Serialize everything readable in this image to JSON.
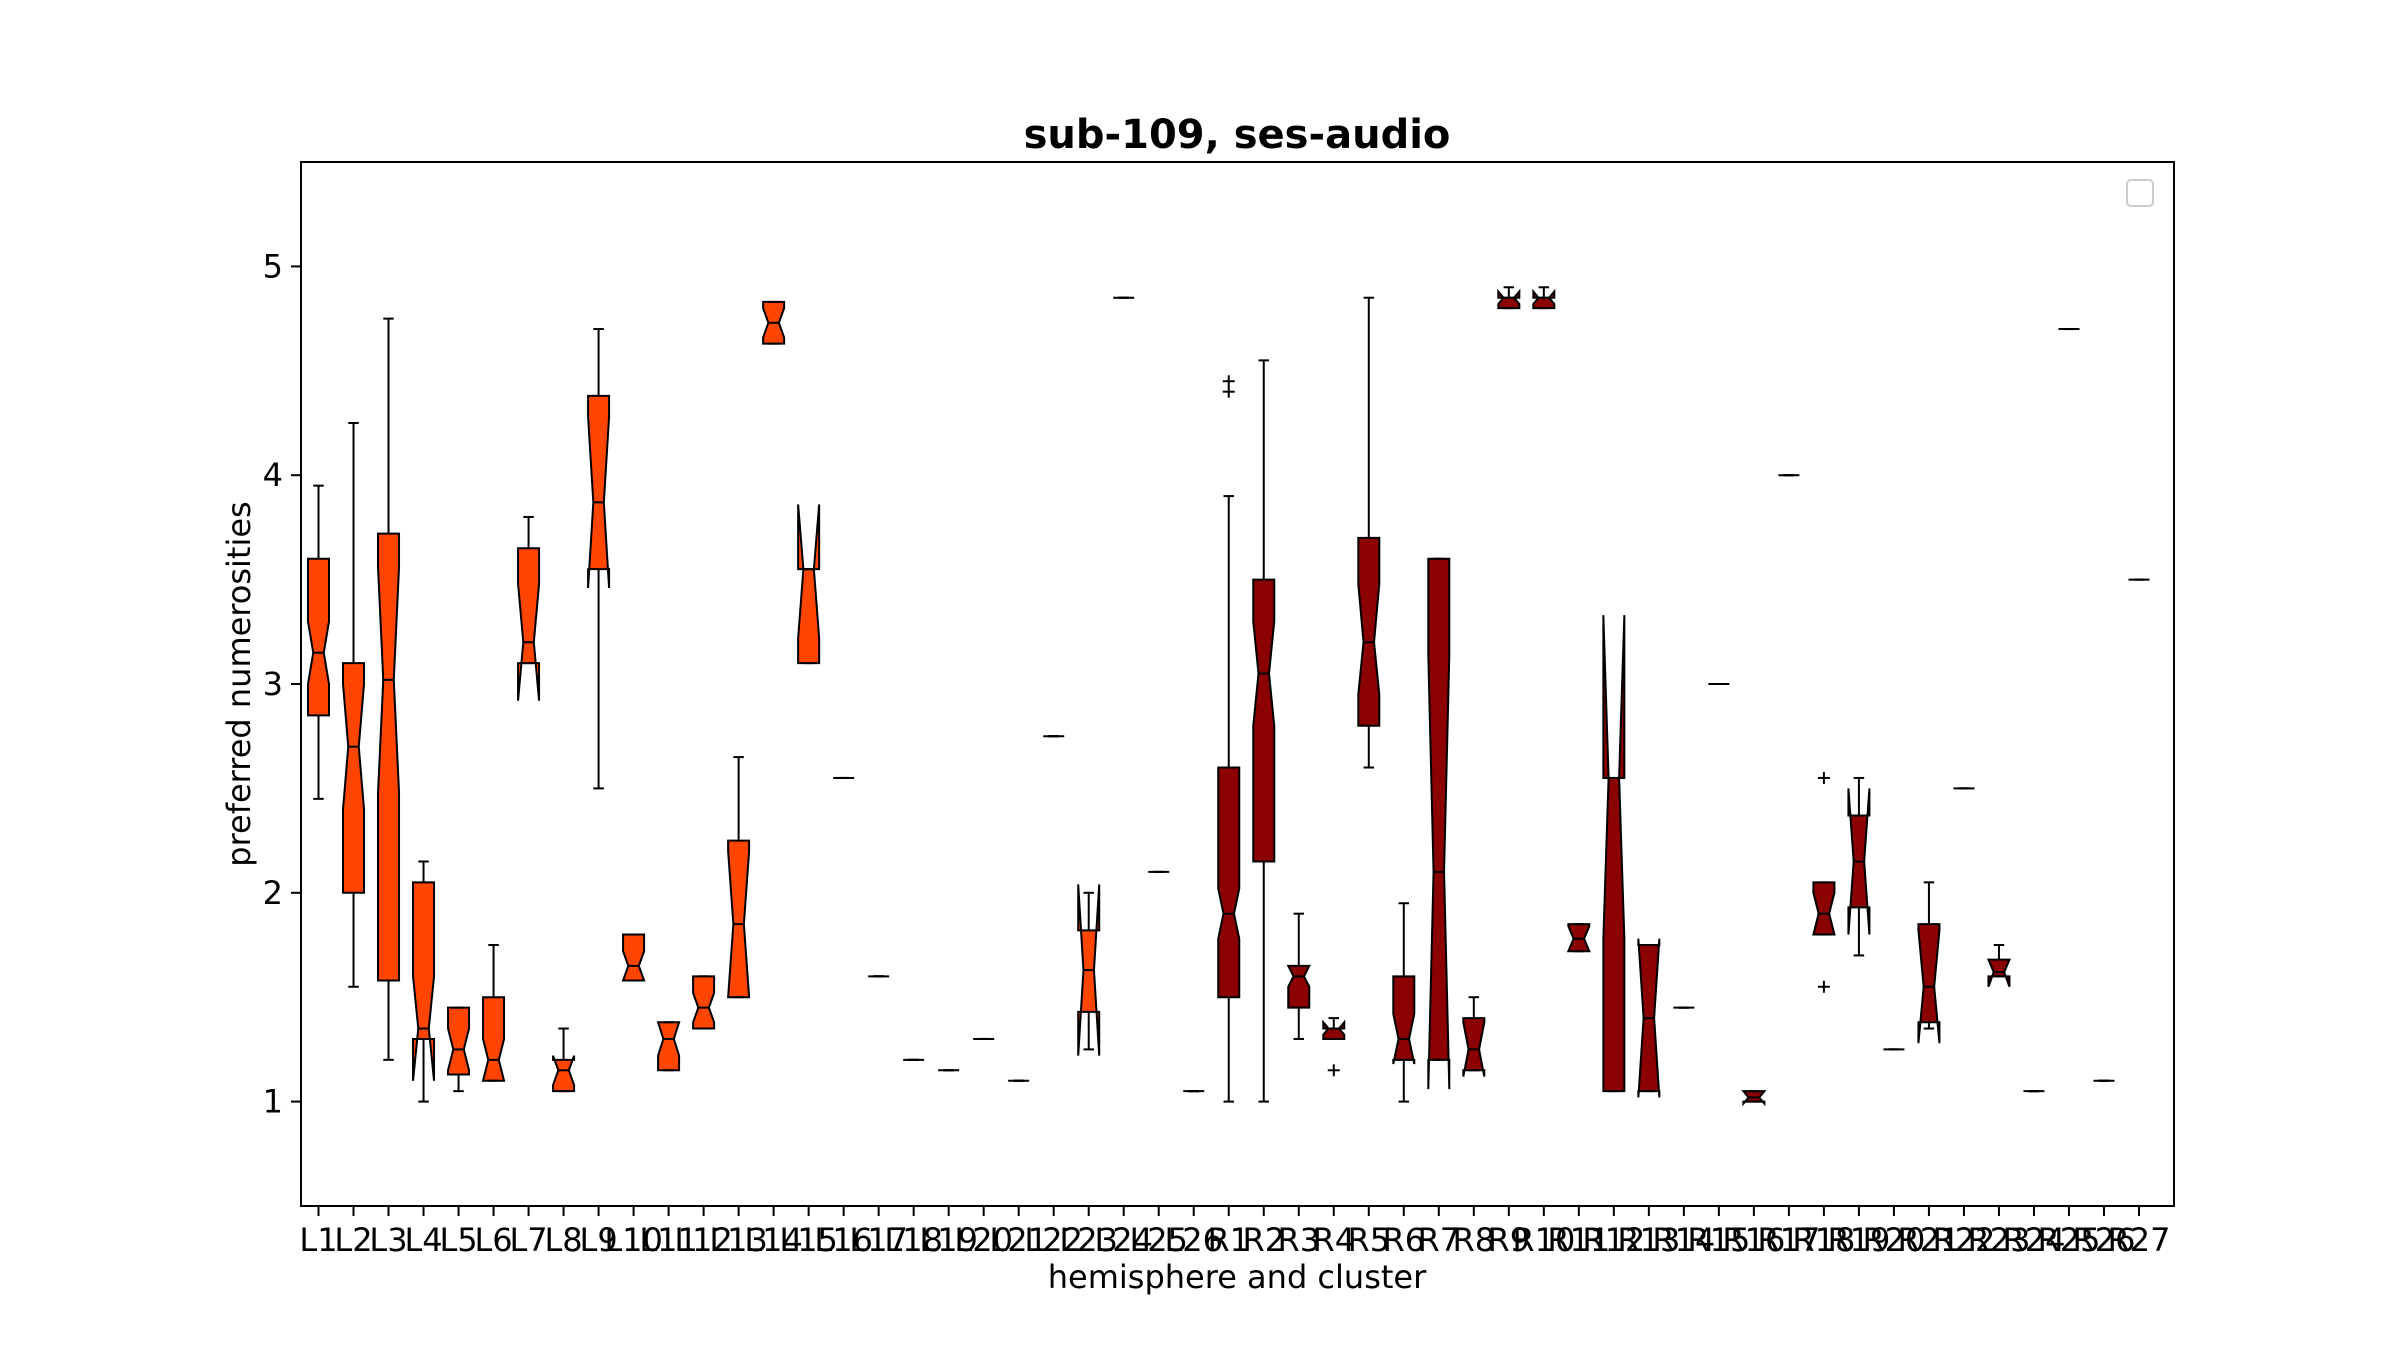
{
  "chart_data": {
    "type": "box",
    "title": "sub-109, ses-audio",
    "xlabel": "hemisphere and cluster",
    "ylabel": "preferred numerosities",
    "ylim": [
      0.5,
      5.5
    ],
    "yticks": [
      1,
      2,
      3,
      4,
      5
    ],
    "notched": true,
    "legend": "top-right (empty)",
    "colors": {
      "left": "#ff4500",
      "right": "#8b0000",
      "edge": "#000000"
    },
    "categories": [
      "L1",
      "L2",
      "L3",
      "L4",
      "L5",
      "L6",
      "L7",
      "L8",
      "L9",
      "L10",
      "L11",
      "L12",
      "L13",
      "L14",
      "L15",
      "L16",
      "L17",
      "L18",
      "L19",
      "L20",
      "L21",
      "L22",
      "L23",
      "L24",
      "L25",
      "L26",
      "R1",
      "R2",
      "R3",
      "R4",
      "R5",
      "R6",
      "R7",
      "R8",
      "R9",
      "R10",
      "R11",
      "R12",
      "R13",
      "R14",
      "R15",
      "R16",
      "R17",
      "R18",
      "R19",
      "R20",
      "R21",
      "R22",
      "R23",
      "R24",
      "R25",
      "R26",
      "R27"
    ],
    "boxes": [
      {
        "label": "L1",
        "group": "left",
        "q1": 2.85,
        "median": 3.15,
        "q3": 3.6,
        "notch": [
          3.0,
          3.3
        ],
        "wlo": 2.45,
        "whi": 3.95,
        "fliers": []
      },
      {
        "label": "L2",
        "group": "left",
        "q1": 2.0,
        "median": 2.7,
        "q3": 3.1,
        "notch": [
          2.4,
          3.0
        ],
        "wlo": 1.55,
        "whi": 4.25,
        "fliers": []
      },
      {
        "label": "L3",
        "group": "left",
        "q1": 1.58,
        "median": 3.02,
        "q3": 3.72,
        "notch": [
          2.48,
          3.56
        ],
        "wlo": 1.2,
        "whi": 4.75,
        "fliers": []
      },
      {
        "label": "L4",
        "group": "left",
        "q1": 1.3,
        "median": 1.35,
        "q3": 2.05,
        "notch": [
          1.1,
          1.6
        ],
        "wlo": 1.0,
        "whi": 2.15,
        "fliers": []
      },
      {
        "label": "L5",
        "group": "left",
        "q1": 1.13,
        "median": 1.25,
        "q3": 1.45,
        "notch": [
          1.15,
          1.35
        ],
        "wlo": 1.05,
        "whi": 1.45,
        "fliers": []
      },
      {
        "label": "L6",
        "group": "left",
        "q1": 1.1,
        "median": 1.2,
        "q3": 1.5,
        "notch": [
          1.1,
          1.3
        ],
        "wlo": 1.1,
        "whi": 1.75,
        "fliers": []
      },
      {
        "label": "L7",
        "group": "left",
        "q1": 3.1,
        "median": 3.2,
        "q3": 3.65,
        "notch": [
          2.92,
          3.48
        ],
        "wlo": 3.1,
        "whi": 3.8,
        "fliers": []
      },
      {
        "label": "L8",
        "group": "left",
        "q1": 1.05,
        "median": 1.15,
        "q3": 1.2,
        "notch": [
          1.08,
          1.22
        ],
        "wlo": 1.05,
        "whi": 1.35,
        "fliers": []
      },
      {
        "label": "L9",
        "group": "left",
        "q1": 3.55,
        "median": 3.87,
        "q3": 4.38,
        "notch": [
          3.46,
          4.28
        ],
        "wlo": 2.5,
        "whi": 4.7,
        "fliers": []
      },
      {
        "label": "L10",
        "group": "left",
        "q1": 1.58,
        "median": 1.65,
        "q3": 1.8,
        "notch": [
          1.58,
          1.72
        ],
        "wlo": 1.58,
        "whi": 1.8,
        "fliers": []
      },
      {
        "label": "L11",
        "group": "left",
        "q1": 1.15,
        "median": 1.3,
        "q3": 1.38,
        "notch": [
          1.22,
          1.38
        ],
        "wlo": 1.15,
        "whi": 1.38,
        "fliers": []
      },
      {
        "label": "L12",
        "group": "left",
        "q1": 1.35,
        "median": 1.45,
        "q3": 1.6,
        "notch": [
          1.38,
          1.52
        ],
        "wlo": 1.35,
        "whi": 1.6,
        "fliers": []
      },
      {
        "label": "L13",
        "group": "left",
        "q1": 1.5,
        "median": 1.85,
        "q3": 2.25,
        "notch": [
          1.5,
          2.2
        ],
        "wlo": 1.5,
        "whi": 2.65,
        "fliers": []
      },
      {
        "label": "L14",
        "group": "left",
        "q1": 4.63,
        "median": 4.73,
        "q3": 4.83,
        "notch": [
          4.66,
          4.8
        ],
        "wlo": 4.63,
        "whi": 4.83,
        "fliers": []
      },
      {
        "label": "L15",
        "group": "left",
        "q1": 3.1,
        "median": 3.55,
        "q3": 3.55,
        "notch": [
          3.22,
          3.86
        ],
        "wlo": 3.1,
        "whi": 3.55,
        "fliers": []
      },
      {
        "label": "L16",
        "group": "left",
        "q1": 2.55,
        "median": 2.55,
        "q3": 2.55,
        "notch": [
          2.55,
          2.55
        ],
        "wlo": 2.55,
        "whi": 2.55,
        "fliers": []
      },
      {
        "label": "L17",
        "group": "left",
        "q1": 1.6,
        "median": 1.6,
        "q3": 1.6,
        "notch": [
          1.6,
          1.6
        ],
        "wlo": 1.6,
        "whi": 1.6,
        "fliers": []
      },
      {
        "label": "L18",
        "group": "left",
        "q1": 1.2,
        "median": 1.2,
        "q3": 1.2,
        "notch": [
          1.2,
          1.2
        ],
        "wlo": 1.2,
        "whi": 1.2,
        "fliers": []
      },
      {
        "label": "L19",
        "group": "left",
        "q1": 1.15,
        "median": 1.15,
        "q3": 1.15,
        "notch": [
          1.15,
          1.15
        ],
        "wlo": 1.15,
        "whi": 1.15,
        "fliers": []
      },
      {
        "label": "L20",
        "group": "left",
        "q1": 1.3,
        "median": 1.3,
        "q3": 1.3,
        "notch": [
          1.3,
          1.3
        ],
        "wlo": 1.3,
        "whi": 1.3,
        "fliers": []
      },
      {
        "label": "L21",
        "group": "left",
        "q1": 1.1,
        "median": 1.1,
        "q3": 1.1,
        "notch": [
          1.1,
          1.1
        ],
        "wlo": 1.1,
        "whi": 1.1,
        "fliers": []
      },
      {
        "label": "L22",
        "group": "left",
        "q1": 2.75,
        "median": 2.75,
        "q3": 2.75,
        "notch": [
          2.75,
          2.75
        ],
        "wlo": 2.75,
        "whi": 2.75,
        "fliers": []
      },
      {
        "label": "L23",
        "group": "left",
        "q1": 1.43,
        "median": 1.63,
        "q3": 1.82,
        "notch": [
          1.22,
          2.04
        ],
        "wlo": 1.25,
        "whi": 2.0,
        "fliers": []
      },
      {
        "label": "L24",
        "group": "left",
        "q1": 4.85,
        "median": 4.85,
        "q3": 4.85,
        "notch": [
          4.85,
          4.85
        ],
        "wlo": 4.85,
        "whi": 4.85,
        "fliers": []
      },
      {
        "label": "L25",
        "group": "left",
        "q1": 2.1,
        "median": 2.1,
        "q3": 2.1,
        "notch": [
          2.1,
          2.1
        ],
        "wlo": 2.1,
        "whi": 2.1,
        "fliers": []
      },
      {
        "label": "L26",
        "group": "left",
        "q1": 1.05,
        "median": 1.05,
        "q3": 1.05,
        "notch": [
          1.05,
          1.05
        ],
        "wlo": 1.05,
        "whi": 1.05,
        "fliers": []
      },
      {
        "label": "R1",
        "group": "right",
        "q1": 1.5,
        "median": 1.9,
        "q3": 2.6,
        "notch": [
          1.78,
          2.02
        ],
        "wlo": 1.0,
        "whi": 3.9,
        "fliers": [
          4.4,
          4.45
        ]
      },
      {
        "label": "R2",
        "group": "right",
        "q1": 2.15,
        "median": 3.05,
        "q3": 3.5,
        "notch": [
          2.8,
          3.3
        ],
        "wlo": 1.0,
        "whi": 4.55,
        "fliers": []
      },
      {
        "label": "R3",
        "group": "right",
        "q1": 1.45,
        "median": 1.6,
        "q3": 1.65,
        "notch": [
          1.55,
          1.65
        ],
        "wlo": 1.3,
        "whi": 1.9,
        "fliers": []
      },
      {
        "label": "R4",
        "group": "right",
        "q1": 1.3,
        "median": 1.35,
        "q3": 1.35,
        "notch": [
          1.32,
          1.38
        ],
        "wlo": 1.3,
        "whi": 1.4,
        "fliers": [
          1.15
        ]
      },
      {
        "label": "R5",
        "group": "right",
        "q1": 2.8,
        "median": 3.2,
        "q3": 3.7,
        "notch": [
          2.95,
          3.48
        ],
        "wlo": 2.6,
        "whi": 4.85,
        "fliers": []
      },
      {
        "label": "R6",
        "group": "right",
        "q1": 1.2,
        "median": 1.3,
        "q3": 1.6,
        "notch": [
          1.18,
          1.42
        ],
        "wlo": 1.0,
        "whi": 1.95,
        "fliers": []
      },
      {
        "label": "R7",
        "group": "right",
        "q1": 1.2,
        "median": 2.1,
        "q3": 3.6,
        "notch": [
          1.06,
          3.14
        ],
        "wlo": 1.2,
        "whi": 3.6,
        "fliers": []
      },
      {
        "label": "R8",
        "group": "right",
        "q1": 1.15,
        "median": 1.25,
        "q3": 1.4,
        "notch": [
          1.12,
          1.38
        ],
        "wlo": 1.15,
        "whi": 1.5,
        "fliers": []
      },
      {
        "label": "R9",
        "group": "right",
        "q1": 4.8,
        "median": 4.85,
        "q3": 4.85,
        "notch": [
          4.82,
          4.88
        ],
        "wlo": 4.8,
        "whi": 4.9,
        "fliers": []
      },
      {
        "label": "R10",
        "group": "right",
        "q1": 4.8,
        "median": 4.85,
        "q3": 4.85,
        "notch": [
          4.82,
          4.88
        ],
        "wlo": 4.8,
        "whi": 4.9,
        "fliers": []
      },
      {
        "label": "R11",
        "group": "right",
        "q1": 1.72,
        "median": 1.78,
        "q3": 1.85,
        "notch": [
          1.72,
          1.84
        ],
        "wlo": 1.72,
        "whi": 1.85,
        "fliers": []
      },
      {
        "label": "R12",
        "group": "right",
        "q1": 1.05,
        "median": 2.55,
        "q3": 2.55,
        "notch": [
          1.78,
          3.33
        ],
        "wlo": 1.05,
        "whi": 2.55,
        "fliers": []
      },
      {
        "label": "R13",
        "group": "right",
        "q1": 1.05,
        "median": 1.4,
        "q3": 1.75,
        "notch": [
          1.02,
          1.78
        ],
        "wlo": 1.05,
        "whi": 1.75,
        "fliers": []
      },
      {
        "label": "R14",
        "group": "right",
        "q1": 1.45,
        "median": 1.45,
        "q3": 1.45,
        "notch": [
          1.45,
          1.45
        ],
        "wlo": 1.45,
        "whi": 1.45,
        "fliers": []
      },
      {
        "label": "R15",
        "group": "right",
        "q1": 3.0,
        "median": 3.0,
        "q3": 3.0,
        "notch": [
          3.0,
          3.0
        ],
        "wlo": 3.0,
        "whi": 3.0,
        "fliers": []
      },
      {
        "label": "R16",
        "group": "right",
        "q1": 1.0,
        "median": 1.02,
        "q3": 1.05,
        "notch": [
          0.99,
          1.05
        ],
        "wlo": 1.0,
        "whi": 1.05,
        "fliers": []
      },
      {
        "label": "R17",
        "group": "right",
        "q1": 4.0,
        "median": 4.0,
        "q3": 4.0,
        "notch": [
          4.0,
          4.0
        ],
        "wlo": 4.0,
        "whi": 4.0,
        "fliers": []
      },
      {
        "label": "R18",
        "group": "right",
        "q1": 1.8,
        "median": 1.9,
        "q3": 2.05,
        "notch": [
          1.8,
          2.0
        ],
        "wlo": 1.8,
        "whi": 2.05,
        "fliers": [
          1.55,
          2.55
        ]
      },
      {
        "label": "R19",
        "group": "right",
        "q1": 1.93,
        "median": 2.15,
        "q3": 2.37,
        "notch": [
          1.8,
          2.5
        ],
        "wlo": 1.7,
        "whi": 2.55,
        "fliers": []
      },
      {
        "label": "R20",
        "group": "right",
        "q1": 1.25,
        "median": 1.25,
        "q3": 1.25,
        "notch": [
          1.25,
          1.25
        ],
        "wlo": 1.25,
        "whi": 1.25,
        "fliers": []
      },
      {
        "label": "R21",
        "group": "right",
        "q1": 1.38,
        "median": 1.55,
        "q3": 1.85,
        "notch": [
          1.28,
          1.82
        ],
        "wlo": 1.35,
        "whi": 2.05,
        "fliers": []
      },
      {
        "label": "R22",
        "group": "right",
        "q1": 2.5,
        "median": 2.5,
        "q3": 2.5,
        "notch": [
          2.5,
          2.5
        ],
        "wlo": 2.5,
        "whi": 2.5,
        "fliers": []
      },
      {
        "label": "R23",
        "group": "right",
        "q1": 1.6,
        "median": 1.62,
        "q3": 1.68,
        "notch": [
          1.55,
          1.68
        ],
        "wlo": 1.6,
        "whi": 1.75,
        "fliers": []
      },
      {
        "label": "R24",
        "group": "right",
        "q1": 1.05,
        "median": 1.05,
        "q3": 1.05,
        "notch": [
          1.05,
          1.05
        ],
        "wlo": 1.05,
        "whi": 1.05,
        "fliers": []
      },
      {
        "label": "R25",
        "group": "right",
        "q1": 4.7,
        "median": 4.7,
        "q3": 4.7,
        "notch": [
          4.7,
          4.7
        ],
        "wlo": 4.7,
        "whi": 4.7,
        "fliers": []
      },
      {
        "label": "R26",
        "group": "right",
        "q1": 1.1,
        "median": 1.1,
        "q3": 1.1,
        "notch": [
          1.1,
          1.1
        ],
        "wlo": 1.1,
        "whi": 1.1,
        "fliers": []
      },
      {
        "label": "R27",
        "group": "right",
        "q1": 3.5,
        "median": 3.5,
        "q3": 3.5,
        "notch": [
          3.5,
          3.5
        ],
        "wlo": 3.5,
        "whi": 3.5,
        "fliers": []
      }
    ]
  }
}
